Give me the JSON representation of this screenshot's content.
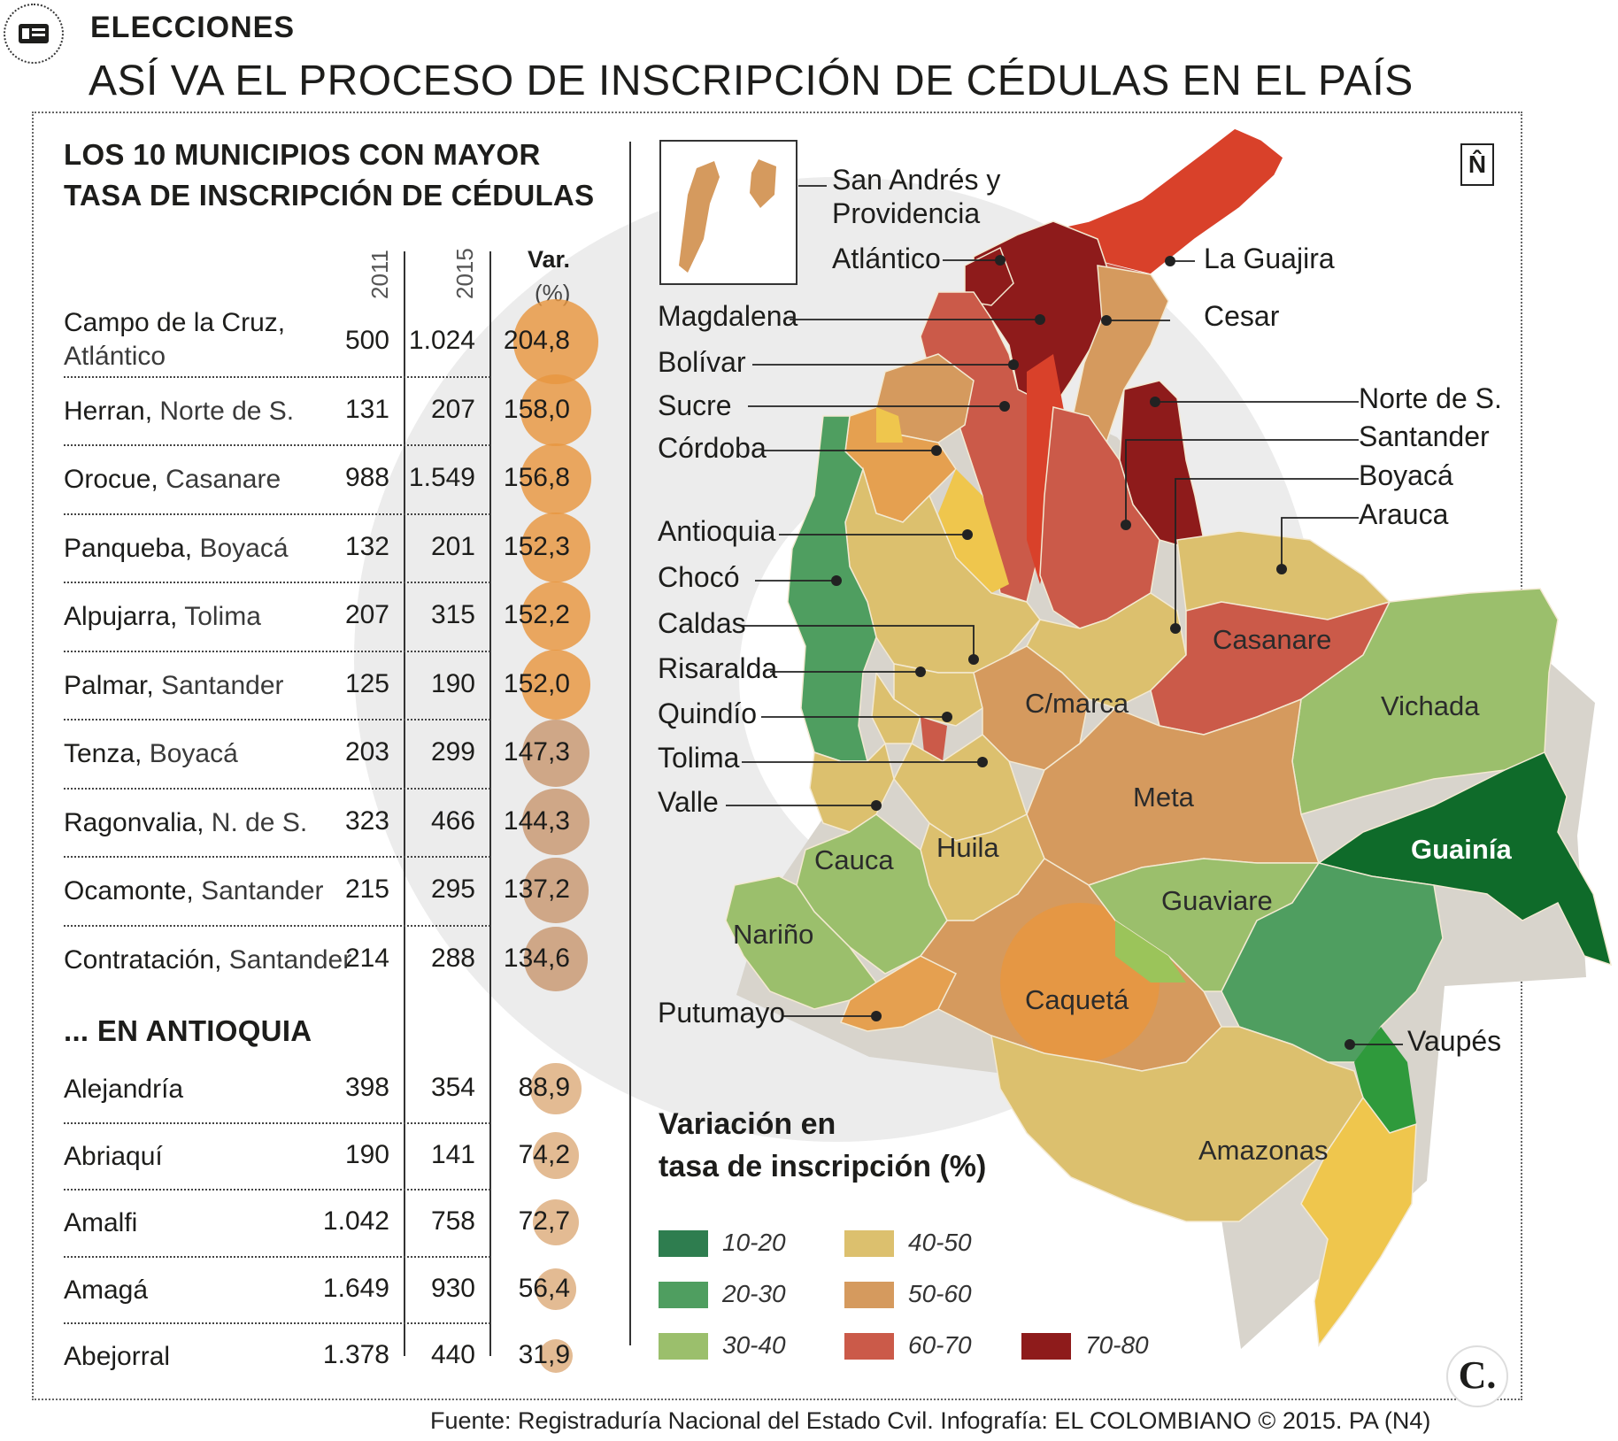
{
  "header": {
    "section": "ELECCIONES",
    "title": "ASÍ VA EL PROCESO DE INSCRIPCIÓN DE CÉDULAS EN EL PAÍS",
    "icon": "id-card-icon"
  },
  "table": {
    "title_line1": "LOS 10 MUNICIPIOS CON MAYOR",
    "title_line2": "TASA DE INSCRIPCIÓN DE CÉDULAS",
    "col_2011": "2011",
    "col_2015": "2015",
    "col_var_line1": "Var.",
    "col_var_line2": "(%)",
    "top10": [
      {
        "name": "Campo de la Cruz,",
        "dept": "Atlántico",
        "v2011": "500",
        "v2015": "1.024",
        "var": "204,8"
      },
      {
        "name": "Herran,",
        "dept": "Norte de S.",
        "v2011": "131",
        "v2015": "207",
        "var": "158,0"
      },
      {
        "name": "Orocue,",
        "dept": "Casanare",
        "v2011": "988",
        "v2015": "1.549",
        "var": "156,8"
      },
      {
        "name": "Panqueba,",
        "dept": "Boyacá",
        "v2011": "132",
        "v2015": "201",
        "var": "152,3"
      },
      {
        "name": "Alpujarra,",
        "dept": "Tolima",
        "v2011": "207",
        "v2015": "315",
        "var": "152,2"
      },
      {
        "name": "Palmar,",
        "dept": "Santander",
        "v2011": "125",
        "v2015": "190",
        "var": "152,0"
      },
      {
        "name": "Tenza,",
        "dept": "Boyacá",
        "v2011": "203",
        "v2015": "299",
        "var": "147,3"
      },
      {
        "name": "Ragonvalia,",
        "dept": "N. de S.",
        "v2011": "323",
        "v2015": "466",
        "var": "144,3"
      },
      {
        "name": "Ocamonte,",
        "dept": "Santander",
        "v2011": "215",
        "v2015": "295",
        "var": "137,2"
      },
      {
        "name": "Contratación,",
        "dept": "Santander",
        "v2011": "214",
        "v2015": "288",
        "var": "134,6"
      }
    ],
    "antioquia_title": "... EN ANTIOQUIA",
    "antioquia": [
      {
        "name": "Alejandría",
        "v2011": "398",
        "v2015": "354",
        "var": "88,9"
      },
      {
        "name": "Abriaquí",
        "v2011": "190",
        "v2015": "141",
        "var": "74,2"
      },
      {
        "name": "Amalfi",
        "v2011": "1.042",
        "v2015": "758",
        "var": "72,7"
      },
      {
        "name": "Amagá",
        "v2011": "1.649",
        "v2015": "930",
        "var": "56,4"
      },
      {
        "name": "Abejorral",
        "v2011": "1.378",
        "v2015": "440",
        "var": "31,9"
      }
    ]
  },
  "map": {
    "north_symbol": "N̂",
    "inset_label_line1": "San Andrés y",
    "inset_label_line2": "Providencia",
    "callouts_left": [
      "Atlántico",
      "Magdalena",
      "Bolívar",
      "Sucre",
      "Córdoba",
      "Antioquia",
      "Chocó",
      "Caldas",
      "Risaralda",
      "Quindío",
      "Tolima",
      "Valle",
      "Putumayo"
    ],
    "callouts_right": [
      "La Guajira",
      "Cesar",
      "Norte de S.",
      "Santander",
      "Boyacá",
      "Arauca",
      "Vaupés"
    ],
    "regions": [
      "Casanare",
      "Vichada",
      "C/marca",
      "Meta",
      "Guainía",
      "Cauca",
      "Huila",
      "Guaviare",
      "Nariño",
      "Caquetá",
      "Amazonas"
    ],
    "colors": {
      "r10_20": "#2e7d4f",
      "r20_30": "#4f9e60",
      "r30_40": "#9bbf6c",
      "r40_50": "#dcc06e",
      "r50_60": "#d59a5e",
      "r60_70": "#cb5a49",
      "r70_80": "#8e1b1b",
      "guainia": "#0f6b2a",
      "guajira": "#d9412a",
      "yellow": "#efc64d"
    }
  },
  "legend": {
    "title_line1": "Variación en",
    "title_line2": "tasa de inscripción (%)",
    "items": [
      {
        "label": "10-20",
        "color": "#2e7d4f"
      },
      {
        "label": "20-30",
        "color": "#4f9e60"
      },
      {
        "label": "30-40",
        "color": "#9bbf6c"
      },
      {
        "label": "40-50",
        "color": "#dcc06e"
      },
      {
        "label": "50-60",
        "color": "#d59a5e"
      },
      {
        "label": "60-70",
        "color": "#cb5a49"
      },
      {
        "label": "70-80",
        "color": "#8e1b1b"
      }
    ]
  },
  "footer": {
    "source": "Fuente: Registraduría Nacional del Estado Cvil. Infografía: EL COLOMBIANO © 2015. PA (N4)",
    "logo": "C."
  }
}
